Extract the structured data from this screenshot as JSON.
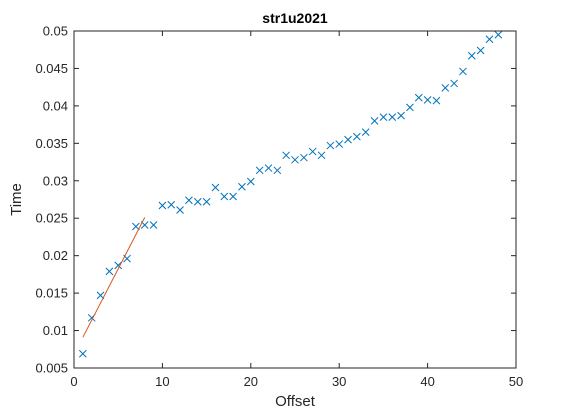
{
  "chart_data": {
    "type": "scatter",
    "title": "str1u2021",
    "xlabel": "Offset",
    "ylabel": "Time",
    "xlim": [
      0,
      50
    ],
    "ylim": [
      0.005,
      0.05
    ],
    "xticks": [
      0,
      10,
      20,
      30,
      40,
      50
    ],
    "yticks": [
      0.005,
      0.01,
      0.015,
      0.02,
      0.025,
      0.03,
      0.035,
      0.04,
      0.045,
      0.05
    ],
    "xtick_labels": [
      "0",
      "10",
      "20",
      "30",
      "40",
      "50"
    ],
    "ytick_labels": [
      "0.005",
      "0.01",
      "0.015",
      "0.02",
      "0.025",
      "0.03",
      "0.035",
      "0.04",
      "0.045",
      "0.05"
    ],
    "grid": false,
    "box": true,
    "series": [
      {
        "kind": "scatter",
        "marker": "x",
        "color": "#0072BD",
        "x": [
          1,
          2,
          3,
          4,
          5,
          6,
          7,
          8,
          9,
          10,
          11,
          12,
          13,
          14,
          15,
          16,
          17,
          18,
          19,
          20,
          21,
          22,
          23,
          24,
          25,
          26,
          27,
          28,
          29,
          30,
          31,
          32,
          33,
          34,
          35,
          36,
          37,
          38,
          39,
          40,
          41,
          42,
          43,
          44,
          45,
          46,
          47,
          48
        ],
        "y": [
          0.0069,
          0.0117,
          0.0147,
          0.0179,
          0.0187,
          0.0196,
          0.0239,
          0.0241,
          0.0241,
          0.0267,
          0.0268,
          0.0261,
          0.0274,
          0.0272,
          0.0272,
          0.0291,
          0.0279,
          0.0279,
          0.0292,
          0.0299,
          0.0314,
          0.0317,
          0.0314,
          0.0334,
          0.0328,
          0.0331,
          0.0339,
          0.0334,
          0.0347,
          0.0349,
          0.0355,
          0.0359,
          0.0365,
          0.038,
          0.0385,
          0.0385,
          0.0387,
          0.0398,
          0.0411,
          0.0408,
          0.0407,
          0.0424,
          0.043,
          0.0446,
          0.0467,
          0.0474,
          0.0489,
          0.0495
        ]
      },
      {
        "kind": "line",
        "color": "#D95319",
        "x": [
          1,
          8
        ],
        "y": [
          0.0091,
          0.0251
        ]
      }
    ]
  }
}
